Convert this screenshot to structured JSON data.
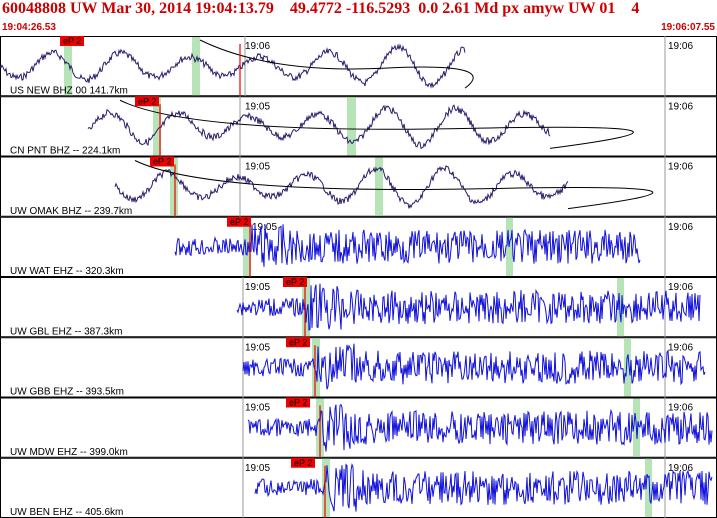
{
  "header": {
    "title": "60048808 UW Mar 30, 2014 19:04:13.79    49.4772 -116.5293  0.0 2.61 Md px amyw UW 01    4",
    "time_start": "19:04:26.53",
    "time_end": "19:06:07.55"
  },
  "chart_data": {
    "type": "line",
    "title": "60048808 UW Mar 30, 2014 19:04:13.79    49.4772 -116.5293  0.0 2.61 Md px amyw UW 01    4",
    "x_range": [
      "19:04:26.53",
      "19:06:07.55"
    ],
    "minute_labels": [
      "19:05",
      "19:06"
    ],
    "grid": true,
    "colors": {
      "long_period": "#2a1a6a",
      "short_period": "#1010dd",
      "pick": "#ee0000",
      "window": "#b7e4b7",
      "border": "#000000"
    },
    "traces": [
      {
        "label": "US NEW BHZ 00 141.7km",
        "component": "BHZ",
        "pick": "eP 2",
        "minute_label": "19:06"
      },
      {
        "label": "CN PNT BHZ -- 224.1km",
        "component": "BHZ",
        "pick": "eP 2",
        "minute_label": "19:05"
      },
      {
        "label": "UW OMAK BHZ -- 239.7km",
        "component": "BHZ",
        "pick": "eP 2",
        "minute_label": "19:05"
      },
      {
        "label": "UW WAT EHZ -- 320.3km",
        "component": "EHZ",
        "pick": "eP 2",
        "minute_label": "19:05"
      },
      {
        "label": "UW GBL EHZ -- 387.3km",
        "component": "EHZ",
        "pick": "eP 2",
        "minute_label": "19:05"
      },
      {
        "label": "UW GBB EHZ -- 393.5km",
        "component": "EHZ",
        "pick": "eP 2",
        "minute_label": "19:05"
      },
      {
        "label": "UW MDW EHZ -- 399.0km",
        "component": "EHZ",
        "pick": "eP 2",
        "minute_label": "19:05"
      },
      {
        "label": "UW BEN EHZ -- 405.6km",
        "component": "EHZ",
        "pick": "eP 2",
        "minute_label": "19:05"
      }
    ]
  }
}
